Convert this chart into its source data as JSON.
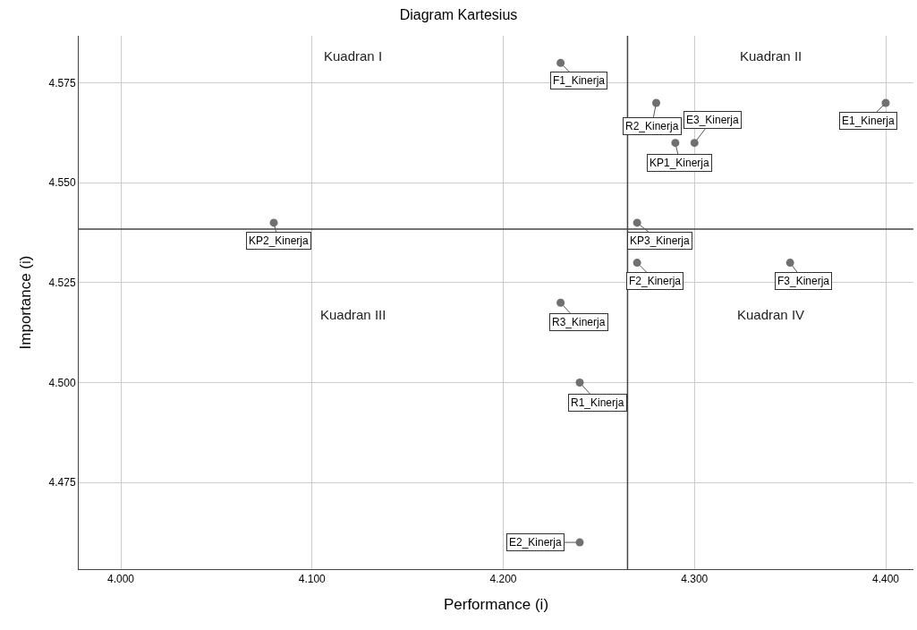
{
  "chart_data": {
    "type": "scatter",
    "title": "Diagram Kartesius",
    "xlabel": "Performance (i)",
    "ylabel": "Importance (i)",
    "x": [
      4.23,
      4.28,
      4.3,
      4.4,
      4.29,
      4.08,
      4.27,
      4.27,
      4.35,
      4.23,
      4.24,
      4.24
    ],
    "values": [
      4.58,
      4.57,
      4.56,
      4.57,
      4.56,
      4.54,
      4.54,
      4.53,
      4.53,
      4.52,
      4.5,
      4.46
    ],
    "value_labels": [
      "F1_Kinerja",
      "R2_Kinerja",
      "E3_Kinerja",
      "E1_Kinerja",
      "KP1_Kinerja",
      "KP2_Kinerja",
      "KP3_Kinerja",
      "F2_Kinerja",
      "F3_Kinerja",
      "R3_Kinerja",
      "R1_Kinerja",
      "E2_Kinerja"
    ],
    "color": "#707070",
    "marker": "circle",
    "xlim": [
      3.978,
      4.4145
    ],
    "xticks": [
      {
        "value": 4.0,
        "label": "4.000"
      },
      {
        "value": 4.1,
        "label": "4.100"
      },
      {
        "value": 4.2,
        "label": "4.200"
      },
      {
        "value": 4.3,
        "label": "4.300"
      },
      {
        "value": 4.4,
        "label": "4.400"
      }
    ],
    "ylim": [
      4.4533,
      4.5868
    ],
    "yticks": [
      4.475,
      {
        "value": 4.5,
        "label": "4.500"
      },
      4.525,
      {
        "value": 4.55,
        "label": "4.550"
      },
      4.575
    ],
    "grid": true,
    "ref_lines": [
      {
        "axis": "x",
        "value": 4.265,
        "color": "#454545"
      },
      {
        "axis": "y",
        "value": 4.5384,
        "color": "#454545"
      }
    ],
    "annotations": [
      "Kuadran I",
      "Kuadran II",
      "Kuadran III",
      "Kuadran IV"
    ]
  }
}
